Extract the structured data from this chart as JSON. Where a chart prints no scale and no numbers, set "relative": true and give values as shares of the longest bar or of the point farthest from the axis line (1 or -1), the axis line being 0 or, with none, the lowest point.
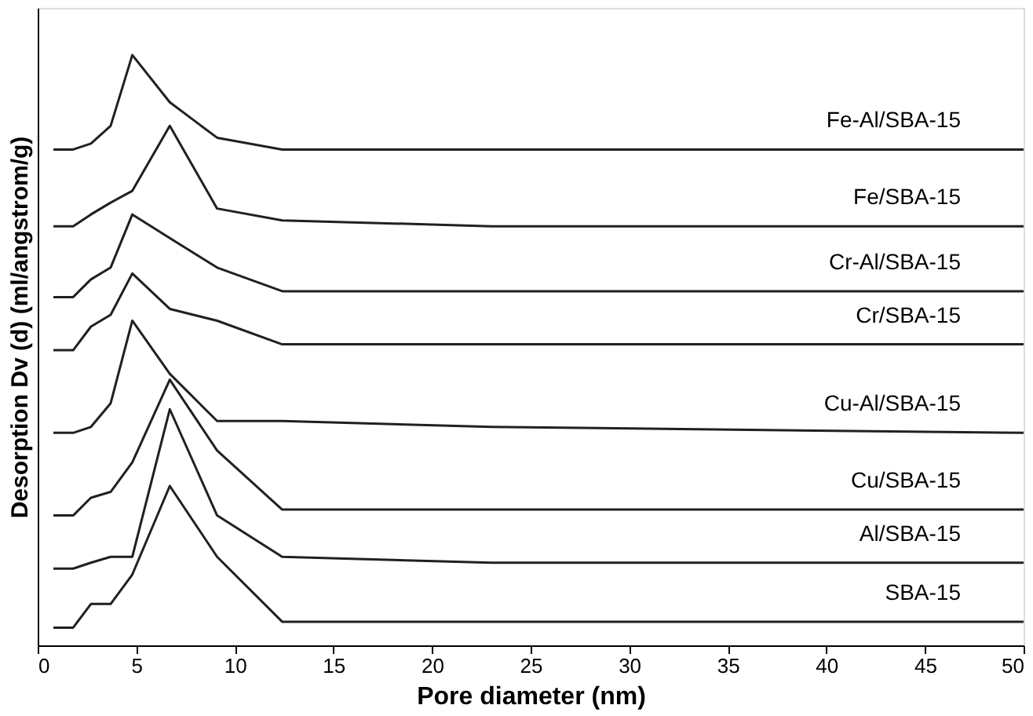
{
  "chart_data": {
    "type": "line",
    "relative": true,
    "xlabel": "Pore diameter (nm)",
    "ylabel": "Desorption Dv (d) (ml/angstrom/g)",
    "x": [
      0.8,
      1.8,
      2.7,
      3.7,
      4.8,
      6.7,
      9.1,
      12.4,
      23,
      50
    ],
    "xlim": [
      0,
      50
    ],
    "xticks": [
      0,
      5,
      10,
      15,
      20,
      25,
      30,
      35,
      40,
      45,
      50
    ],
    "tick_labels": "x",
    "grid": false,
    "legend": false,
    "marker": "none",
    "line_style": "solid",
    "series": [
      {
        "name": "Fe-Al/SBA-15",
        "color": "#231f20",
        "values": [
          0.84,
          0.84,
          0.85,
          0.88,
          1.0,
          0.92,
          0.86,
          0.84,
          0.84,
          0.84
        ]
      },
      {
        "name": "Fe/SBA-15",
        "color": "#231f20",
        "values": [
          0.71,
          0.71,
          0.73,
          0.75,
          0.77,
          0.88,
          0.74,
          0.72,
          0.71,
          0.71
        ]
      },
      {
        "name": "Cr-Al/SBA-15",
        "color": "#231f20",
        "values": [
          0.59,
          0.59,
          0.62,
          0.64,
          0.73,
          0.69,
          0.64,
          0.6,
          0.6,
          0.6
        ]
      },
      {
        "name": "Cr/SBA-15",
        "color": "#231f20",
        "values": [
          0.5,
          0.5,
          0.54,
          0.56,
          0.63,
          0.57,
          0.55,
          0.51,
          0.51,
          0.51
        ]
      },
      {
        "name": "Cu-Al/SBA-15",
        "color": "#231f20",
        "values": [
          0.36,
          0.36,
          0.37,
          0.41,
          0.55,
          0.46,
          0.38,
          0.38,
          0.37,
          0.36
        ]
      },
      {
        "name": "Cu/SBA-15",
        "color": "#231f20",
        "values": [
          0.22,
          0.22,
          0.25,
          0.26,
          0.31,
          0.45,
          0.33,
          0.23,
          0.23,
          0.23
        ]
      },
      {
        "name": "Al/SBA-15",
        "color": "#231f20",
        "values": [
          0.13,
          0.13,
          0.14,
          0.15,
          0.15,
          0.4,
          0.22,
          0.15,
          0.14,
          0.14
        ]
      },
      {
        "name": "SBA-15",
        "color": "#231f20",
        "values": [
          0.03,
          0.03,
          0.07,
          0.07,
          0.12,
          0.27,
          0.15,
          0.04,
          0.04,
          0.04
        ]
      }
    ]
  }
}
